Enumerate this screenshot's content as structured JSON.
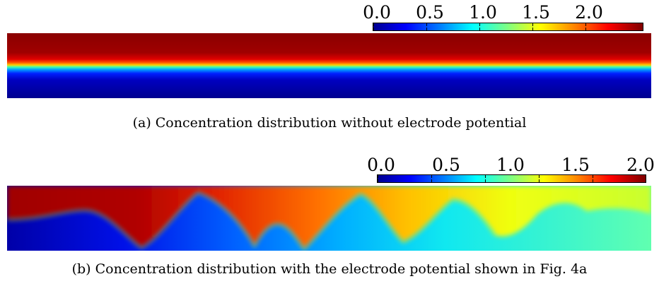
{
  "panels": [
    {
      "colorbar": {
        "ticks": [
          "0.0",
          "0.5",
          "1.0",
          "1.5",
          "2.0"
        ],
        "range": [
          0.0,
          2.0
        ],
        "colormap": "jet"
      },
      "caption": "(a) Concentration distribution without electrode potential"
    },
    {
      "colorbar": {
        "ticks": [
          "0.0",
          "0.5",
          "1.0",
          "1.5",
          "2.0"
        ],
        "range": [
          0.0,
          2.0
        ],
        "colormap": "jet"
      },
      "caption": "(b) Concentration distribution with the electrode potential shown in Fig. 4a"
    }
  ]
}
